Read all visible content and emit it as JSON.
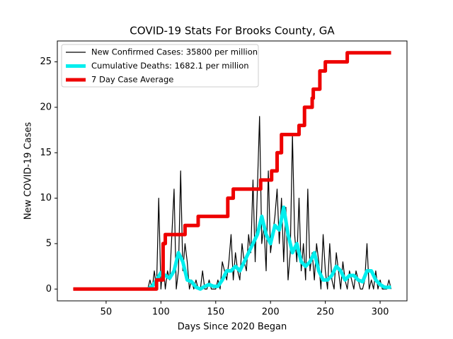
{
  "chart_data": {
    "type": "line",
    "title": "COVID-19 Stats For Brooks County, GA",
    "x_label": "Days Since 2020 Began",
    "y_label": "New COVID-19 Cases",
    "xlim": [
      5.5,
      324.5
    ],
    "ylim": [
      -1.3,
      27.3
    ],
    "xticks": [
      50,
      100,
      150,
      200,
      250,
      300
    ],
    "yticks": [
      0,
      5,
      10,
      15,
      20,
      25
    ],
    "legend": "upper left",
    "series": [
      {
        "name": "New Confirmed Cases: 35800 per million",
        "color": "#000000",
        "width": 1.2,
        "x": [
          20,
          86,
          88,
          90,
          92,
          94,
          96,
          98,
          100,
          102,
          104,
          106,
          108,
          110,
          112,
          114,
          116,
          118,
          120,
          122,
          124,
          126,
          128,
          130,
          132,
          134,
          136,
          138,
          140,
          142,
          144,
          146,
          148,
          150,
          152,
          154,
          156,
          158,
          160,
          162,
          164,
          166,
          168,
          170,
          172,
          174,
          176,
          178,
          180,
          182,
          184,
          186,
          188,
          190,
          192,
          194,
          196,
          198,
          200,
          202,
          204,
          206,
          208,
          210,
          212,
          214,
          216,
          218,
          220,
          222,
          224,
          226,
          228,
          230,
          232,
          234,
          236,
          238,
          240,
          242,
          244,
          246,
          248,
          250,
          252,
          254,
          256,
          258,
          260,
          262,
          264,
          266,
          268,
          270,
          272,
          274,
          276,
          278,
          280,
          282,
          284,
          286,
          288,
          290,
          292,
          294,
          296,
          298,
          300,
          302,
          304,
          306,
          308,
          310
        ],
        "values": [
          0,
          0,
          0,
          1,
          0,
          2,
          0,
          10,
          0,
          3,
          0,
          2,
          1,
          6,
          11,
          0,
          2,
          13,
          2,
          5,
          3,
          0,
          1,
          0,
          1,
          0,
          0,
          2,
          0,
          0,
          1,
          0,
          0,
          0,
          1,
          0,
          3,
          2,
          1,
          3,
          6,
          1,
          4,
          2,
          1,
          5,
          3,
          2,
          6,
          4,
          12,
          3,
          11,
          19,
          5,
          7,
          2,
          13,
          4,
          6,
          8,
          11,
          5,
          10,
          3,
          9,
          1,
          4,
          17,
          6,
          3,
          10,
          2,
          5,
          1,
          11,
          2,
          4,
          1,
          5,
          3,
          0,
          6,
          2,
          0,
          5,
          1,
          0,
          4,
          2,
          0,
          3,
          1,
          0,
          2,
          1,
          0,
          2,
          1,
          0,
          0,
          1,
          5,
          0,
          1,
          0,
          2,
          0,
          1,
          0,
          0,
          0,
          1,
          0
        ]
      },
      {
        "name": "Cumulative Deaths: 1682.1 per million",
        "color": "#00eeee",
        "width": 5,
        "x": [
          88,
          92,
          96,
          100,
          104,
          108,
          112,
          116,
          120,
          124,
          128,
          132,
          136,
          140,
          144,
          148,
          152,
          156,
          160,
          164,
          168,
          172,
          176,
          180,
          184,
          188,
          192,
          196,
          200,
          204,
          208,
          212,
          216,
          220,
          224,
          228,
          232,
          236,
          240,
          244,
          248,
          252,
          256,
          260,
          264,
          268,
          272,
          276,
          280,
          284,
          288,
          292,
          296,
          300,
          304,
          308,
          310
        ],
        "values": [
          0,
          0.3,
          1,
          1.8,
          1.5,
          1.2,
          2,
          4,
          3,
          1,
          0.8,
          0.2,
          0,
          0.3,
          0.5,
          0.3,
          0.3,
          1,
          2,
          2,
          2.5,
          2,
          3,
          4,
          5,
          6,
          8,
          6,
          5,
          7,
          6.5,
          9,
          6,
          4,
          5,
          3,
          2.5,
          3,
          4,
          2,
          1,
          1,
          1.5,
          2.5,
          2,
          1,
          1.5,
          1.5,
          1,
          0.8,
          2,
          2,
          1,
          0.5,
          0.2,
          0.2,
          0.2
        ]
      },
      {
        "name": "7 Day Case Average",
        "color": "#ee0000",
        "width": 5,
        "x": [
          20,
          96,
          96,
          102,
          102,
          104,
          104,
          122,
          122,
          134,
          134,
          161,
          161,
          166,
          166,
          191,
          191,
          201,
          201,
          206,
          206,
          210,
          210,
          226,
          226,
          231,
          231,
          238,
          238,
          239,
          239,
          245,
          245,
          250,
          250,
          270,
          270,
          310
        ],
        "values": [
          0,
          0,
          1,
          1,
          5,
          5,
          6,
          6,
          7,
          7,
          8,
          8,
          10,
          10,
          11,
          11,
          12,
          12,
          13,
          13,
          15,
          15,
          17,
          17,
          18,
          18,
          20,
          20,
          21,
          21,
          22,
          22,
          24,
          24,
          25,
          25,
          26,
          26
        ]
      }
    ]
  }
}
